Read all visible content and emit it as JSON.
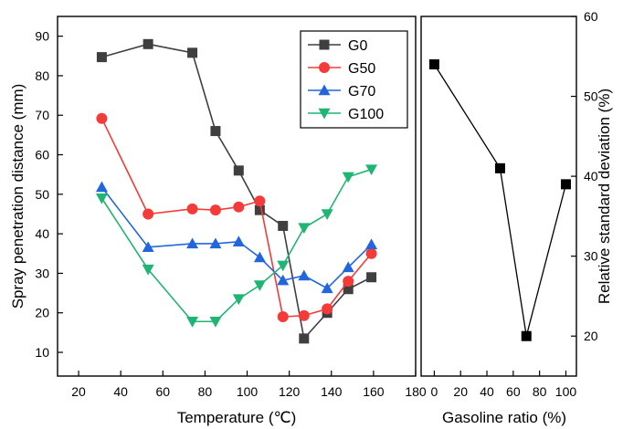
{
  "chart_data": [
    {
      "type": "line",
      "xlabel": "Temperature (℃)",
      "ylabel": "Spray penetration distance (mm)",
      "xlim": [
        10,
        180
      ],
      "ylim": [
        4,
        95
      ],
      "x_ticks": [
        20,
        40,
        60,
        80,
        100,
        120,
        140,
        160,
        180
      ],
      "y_ticks": [
        10,
        20,
        30,
        40,
        50,
        60,
        70,
        80,
        90
      ],
      "x_tick_labels": [
        "20",
        "40",
        "60",
        "80",
        "100",
        "120",
        "140",
        "160",
        "180"
      ],
      "y_tick_labels": [
        "10",
        "20",
        "30",
        "40",
        "50",
        "60",
        "70",
        "80",
        "90"
      ],
      "legend": "top-right",
      "grid": false,
      "series": [
        {
          "name": "G0",
          "color": "#3f3f3f",
          "marker": "square",
          "x": [
            31,
            53,
            74,
            85,
            96,
            106,
            117,
            127,
            138,
            148,
            159
          ],
          "y": [
            84.7,
            88,
            85.8,
            66,
            56,
            46,
            42,
            13.5,
            20,
            26,
            29
          ]
        },
        {
          "name": "G50",
          "color": "#f53a3a",
          "marker": "circle",
          "x": [
            31,
            53,
            74,
            85,
            96,
            106,
            117,
            127,
            138,
            148,
            159
          ],
          "y": [
            69.2,
            45,
            46.3,
            46,
            46.8,
            48.3,
            19,
            19.3,
            21,
            28,
            35
          ]
        },
        {
          "name": "G70",
          "color": "#2266dd",
          "marker": "triangle-up",
          "x": [
            31,
            53,
            74,
            85,
            96,
            106,
            117,
            127,
            138,
            148,
            159
          ],
          "y": [
            51.8,
            36.6,
            37.5,
            37.5,
            38,
            34,
            28.2,
            29.4,
            26.2,
            31.5,
            37.3
          ]
        },
        {
          "name": "G100",
          "color": "#1fb574",
          "marker": "triangle-down",
          "x": [
            31,
            53,
            74,
            85,
            96,
            106,
            117,
            127,
            138,
            148,
            159
          ],
          "y": [
            49,
            31,
            17.8,
            17.8,
            23.5,
            27,
            32,
            41.5,
            45,
            54.4,
            56.3
          ]
        }
      ]
    },
    {
      "type": "line",
      "xlabel": "Gasoline ratio (%)",
      "ylabel": "Relative standard deviation (%)",
      "xlim": [
        -10,
        108
      ],
      "ylim": [
        15,
        60
      ],
      "x_ticks": [
        0,
        20,
        40,
        60,
        80,
        100
      ],
      "y_ticks": [
        20,
        30,
        40,
        50,
        60
      ],
      "x_tick_labels": [
        "0",
        "20",
        "40",
        "60",
        "80",
        "100"
      ],
      "y_tick_labels": [
        "20",
        "30",
        "40",
        "50",
        "60"
      ],
      "grid": false,
      "series": [
        {
          "color": "#000000",
          "marker": "square",
          "x": [
            0,
            50,
            70,
            100
          ],
          "y": [
            54,
            41,
            20,
            39
          ]
        }
      ]
    }
  ]
}
